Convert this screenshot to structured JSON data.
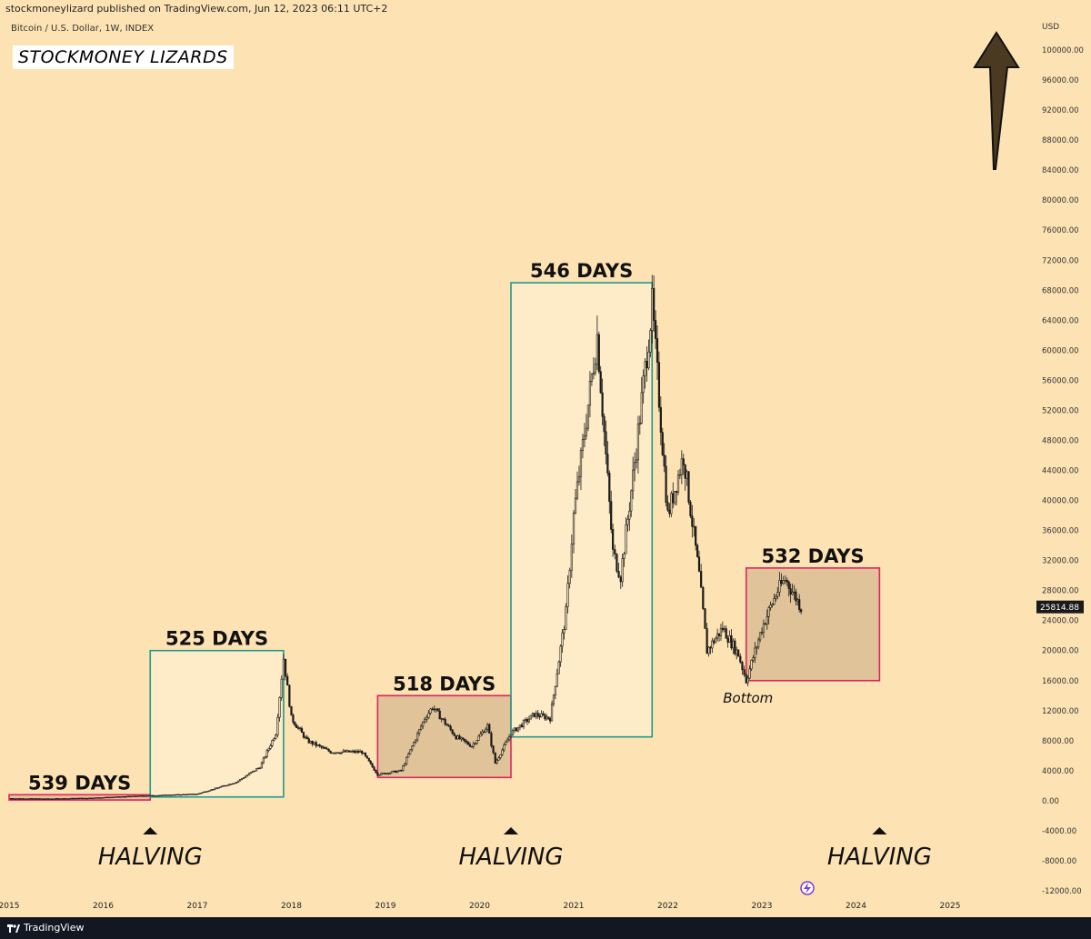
{
  "header": {
    "publisher_line": "stockmoneylizard published on TradingView.com, Jun 12, 2023 06:11 UTC+2",
    "symbol_line": "Bitcoin / U.S. Dollar, 1W, INDEX",
    "brand_box": "STOCKMONEY LIZARDS",
    "currency": "USD"
  },
  "footer": {
    "brand": "TradingView"
  },
  "colors": {
    "background": "#fde3b4",
    "red_box": "#e0245e",
    "teal_box": "#1f9a8c",
    "candle": "#1a1a1a",
    "price_label_bg": "#1a1a1a"
  },
  "chart_data": {
    "type": "candlestick",
    "title": "",
    "xlabel": "",
    "ylabel": "",
    "ylim": [
      -12000,
      100000
    ],
    "x_ticks": [
      "2015",
      "2016",
      "2017",
      "2018",
      "2019",
      "2020",
      "2021",
      "2022",
      "2023",
      "2024",
      "2025"
    ],
    "y_ticks": [
      "100000.00",
      "96000.00",
      "92000.00",
      "88000.00",
      "84000.00",
      "80000.00",
      "76000.00",
      "72000.00",
      "68000.00",
      "64000.00",
      "60000.00",
      "56000.00",
      "52000.00",
      "48000.00",
      "44000.00",
      "40000.00",
      "36000.00",
      "32000.00",
      "28000.00",
      "24000.00",
      "20000.00",
      "16000.00",
      "12000.00",
      "8000.00",
      "4000.00",
      "0.00",
      "-4000.00",
      "-8000.00",
      "-12000.00"
    ],
    "current_price": "25814.88",
    "series": [
      {
        "values": [
          {
            "t": "2015-01",
            "v": 300
          },
          {
            "t": "2015-06",
            "v": 250
          },
          {
            "t": "2015-11",
            "v": 350
          },
          {
            "t": "2016-06",
            "v": 650
          },
          {
            "t": "2017-01",
            "v": 900
          },
          {
            "t": "2017-06",
            "v": 2500
          },
          {
            "t": "2017-09",
            "v": 4500
          },
          {
            "t": "2017-11",
            "v": 9000
          },
          {
            "t": "2017-12",
            "v": 19000
          },
          {
            "t": "2018-01",
            "v": 11000
          },
          {
            "t": "2018-03",
            "v": 8000
          },
          {
            "t": "2018-06",
            "v": 6500
          },
          {
            "t": "2018-10",
            "v": 6500
          },
          {
            "t": "2018-12",
            "v": 3500
          },
          {
            "t": "2019-03",
            "v": 4000
          },
          {
            "t": "2019-06",
            "v": 11000
          },
          {
            "t": "2019-07",
            "v": 12500
          },
          {
            "t": "2019-10",
            "v": 8500
          },
          {
            "t": "2019-12",
            "v": 7300
          },
          {
            "t": "2020-02",
            "v": 10000
          },
          {
            "t": "2020-03",
            "v": 5000
          },
          {
            "t": "2020-05",
            "v": 9000
          },
          {
            "t": "2020-08",
            "v": 11500
          },
          {
            "t": "2020-10",
            "v": 11000
          },
          {
            "t": "2020-12",
            "v": 25000
          },
          {
            "t": "2021-01",
            "v": 38000
          },
          {
            "t": "2021-04",
            "v": 62000
          },
          {
            "t": "2021-06",
            "v": 33000
          },
          {
            "t": "2021-07",
            "v": 30000
          },
          {
            "t": "2021-09",
            "v": 47000
          },
          {
            "t": "2021-11",
            "v": 66000
          },
          {
            "t": "2022-01",
            "v": 38000
          },
          {
            "t": "2022-03",
            "v": 46000
          },
          {
            "t": "2022-05",
            "v": 30000
          },
          {
            "t": "2022-06",
            "v": 20000
          },
          {
            "t": "2022-08",
            "v": 23000
          },
          {
            "t": "2022-10",
            "v": 19500
          },
          {
            "t": "2022-11",
            "v": 16000
          },
          {
            "t": "2023-01",
            "v": 23000
          },
          {
            "t": "2023-03",
            "v": 28000
          },
          {
            "t": "2023-04",
            "v": 29500
          },
          {
            "t": "2023-06",
            "v": 25800
          }
        ]
      }
    ],
    "boxes": [
      {
        "label": "539 DAYS",
        "color": "red",
        "x0": "2015-01",
        "x1": "2016-07",
        "y0": 100,
        "y1": 800
      },
      {
        "label": "525 DAYS",
        "color": "teal",
        "x0": "2016-07",
        "x1": "2017-12",
        "y0": 500,
        "y1": 20000
      },
      {
        "label": "518 DAYS",
        "color": "red",
        "x0": "2018-12",
        "x1": "2020-05",
        "y0": 3100,
        "y1": 14000
      },
      {
        "label": "546 DAYS",
        "color": "teal",
        "x0": "2020-05",
        "x1": "2021-11",
        "y0": 8500,
        "y1": 69000
      },
      {
        "label": "532 DAYS",
        "color": "red",
        "x0": "2022-11",
        "x1": "2024-04",
        "y0": 16000,
        "y1": 31000
      }
    ],
    "annotations": [
      {
        "text": "HALVING",
        "t": "2016-07"
      },
      {
        "text": "HALVING",
        "t": "2020-05"
      },
      {
        "text": "HALVING",
        "t": "2024-04"
      },
      {
        "text": "Bottom",
        "t": "2022-11"
      }
    ]
  }
}
